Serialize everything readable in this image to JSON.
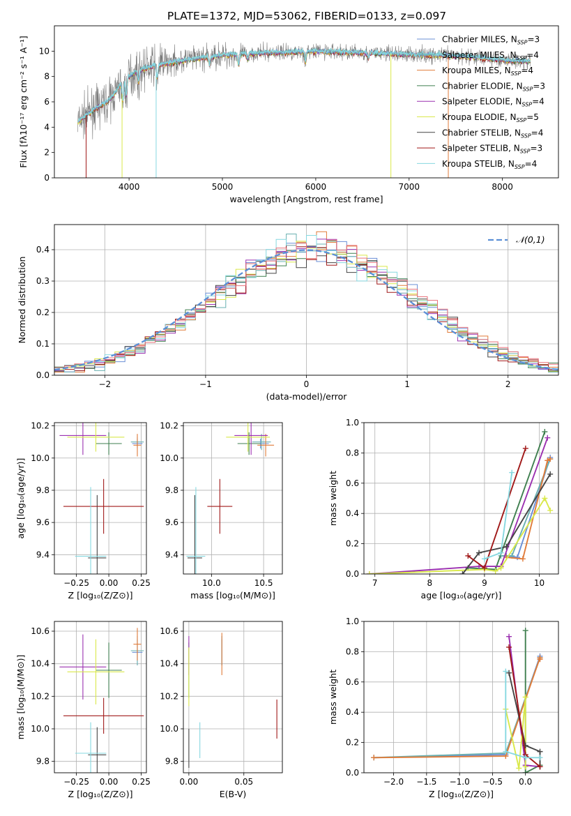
{
  "colors": {
    "chabrier_miles": "#6a8fd6",
    "salpeter_miles": "#6ab0b0",
    "kroupa_miles": "#e07b39",
    "chabrier_elodie": "#3f7f4f",
    "salpeter_elodie": "#9b30b0",
    "kroupa_elodie": "#d9e84a",
    "chabrier_stelib": "#444444",
    "salpeter_stelib": "#a01818",
    "kroupa_stelib": "#86d8e0",
    "normal_curve": "#5b8fd6",
    "grid": "#b0b0b0"
  },
  "chart_data": [
    {
      "id": "spectrum",
      "type": "line",
      "title": "PLATE=1372, MJD=53062, FIBERID=0133, z=0.097",
      "xlabel": "wavelength [Angstrom, rest frame]",
      "ylabel": "Flux [fλ10⁻¹⁷ erg cm⁻² s⁻¹ A⁻¹]",
      "xlim": [
        3200,
        8600
      ],
      "ylim": [
        0,
        12
      ],
      "xticks": [
        4000,
        5000,
        6000,
        7000,
        8000
      ],
      "yticks": [
        0,
        2,
        4,
        6,
        8,
        10
      ],
      "grid": false,
      "legend_position": "right",
      "series": [
        {
          "name": "Chabrier MILES, N_SSP=3"
        },
        {
          "name": "Salpeter MILES, N_SSP=4"
        },
        {
          "name": "Kroupa MILES, N_SSP=4"
        },
        {
          "name": "Chabrier ELODIE, N_SSP=3"
        },
        {
          "name": "Salpeter ELODIE, N_SSP=4"
        },
        {
          "name": "Kroupa ELODIE, N_SSP=5"
        },
        {
          "name": "Chabrier STELIB, N_SSP=4"
        },
        {
          "name": "Salpeter STELIB, N_SSP=3"
        },
        {
          "name": "Kroupa STELIB, N_SSP=4"
        }
      ],
      "continuum": {
        "x": [
          3450,
          3600,
          3800,
          3950,
          4100,
          4300,
          4600,
          4900,
          5200,
          5600,
          6000,
          6400,
          6800,
          7200,
          7600,
          8000,
          8300
        ],
        "y": [
          4.4,
          5.3,
          6.2,
          7.8,
          8.5,
          8.9,
          9.3,
          9.6,
          9.8,
          9.9,
          10.0,
          9.9,
          9.8,
          9.7,
          9.6,
          9.3,
          9.2
        ]
      }
    },
    {
      "id": "residuals",
      "type": "histogram",
      "xlabel": "(data-model)/error",
      "ylabel": "Normed distribution",
      "xlim": [
        -2.5,
        2.5
      ],
      "ylim": [
        0,
        0.48
      ],
      "xticks": [
        -2,
        -1,
        0,
        1,
        2
      ],
      "yticks": [
        0.0,
        0.1,
        0.2,
        0.3,
        0.4
      ],
      "grid": true,
      "legend": "𝒩(0,1)",
      "legend_position": "top-right",
      "bin_width": 0.1
    },
    {
      "id": "age_vs_Z",
      "type": "errorbar",
      "xlabel": "Z [log₁₀(Z/Z⊙)]",
      "ylabel": "age  [log₁₀(age/yr)]",
      "xlim": [
        -0.42,
        0.29
      ],
      "ylim": [
        9.28,
        10.22
      ],
      "xticks": [
        -0.25,
        0.0,
        0.25
      ],
      "yticks": [
        9.4,
        9.6,
        9.8,
        10.0,
        10.2
      ],
      "grid": true,
      "points": [
        {
          "model": "chabrier_miles",
          "x": 0.22,
          "xerr": 0.04,
          "y": 10.09,
          "yerr": 0.03
        },
        {
          "model": "salpeter_miles",
          "x": 0.22,
          "xerr": 0.05,
          "y": 10.1,
          "yerr": 0.03
        },
        {
          "model": "kroupa_miles",
          "x": 0.22,
          "xerr": 0.03,
          "y": 10.08,
          "yerr": 0.07
        },
        {
          "model": "chabrier_elodie",
          "x": 0.0,
          "xerr": 0.1,
          "y": 10.09,
          "yerr": 0.07
        },
        {
          "model": "salpeter_elodie",
          "x": -0.2,
          "xerr": 0.18,
          "y": 10.14,
          "yerr": 0.12
        },
        {
          "model": "kroupa_elodie",
          "x": -0.1,
          "xerr": 0.22,
          "y": 10.13,
          "yerr": 0.09
        },
        {
          "model": "chabrier_stelib",
          "x": -0.09,
          "xerr": 0.07,
          "y": 9.38,
          "yerr": 0.39
        },
        {
          "model": "salpeter_stelib",
          "x": -0.04,
          "xerr": 0.31,
          "y": 9.7,
          "yerr": 0.17
        },
        {
          "model": "kroupa_stelib",
          "x": -0.14,
          "xerr": 0.12,
          "y": 9.39,
          "yerr": 0.43
        }
      ]
    },
    {
      "id": "age_vs_mass",
      "type": "errorbar",
      "xlabel": "mass [log₁₀(M/M⊙)]",
      "xlim": [
        9.73,
        10.68
      ],
      "ylim": [
        9.28,
        10.22
      ],
      "xticks": [
        10.0,
        10.5
      ],
      "yticks": [
        9.4,
        9.6,
        9.8,
        10.0,
        10.2
      ],
      "grid": true,
      "points": [
        {
          "model": "chabrier_miles",
          "x": 10.47,
          "xerr": 0.08,
          "y": 10.09,
          "yerr": 0.03
        },
        {
          "model": "salpeter_miles",
          "x": 10.48,
          "xerr": 0.09,
          "y": 10.1,
          "yerr": 0.05
        },
        {
          "model": "kroupa_miles",
          "x": 10.52,
          "xerr": 0.08,
          "y": 10.08,
          "yerr": 0.07
        },
        {
          "model": "chabrier_elodie",
          "x": 10.36,
          "xerr": 0.11,
          "y": 10.09,
          "yerr": 0.07
        },
        {
          "model": "salpeter_elodie",
          "x": 10.38,
          "xerr": 0.16,
          "y": 10.14,
          "yerr": 0.12
        },
        {
          "model": "kroupa_elodie",
          "x": 10.35,
          "xerr": 0.21,
          "y": 10.13,
          "yerr": 0.09
        },
        {
          "model": "chabrier_stelib",
          "x": 9.84,
          "xerr": 0.07,
          "y": 9.38,
          "yerr": 0.39
        },
        {
          "model": "salpeter_stelib",
          "x": 10.08,
          "xerr": 0.12,
          "y": 9.7,
          "yerr": 0.17
        },
        {
          "model": "kroupa_stelib",
          "x": 9.85,
          "xerr": 0.09,
          "y": 9.39,
          "yerr": 0.43
        }
      ]
    },
    {
      "id": "mass_weight_vs_age",
      "type": "line",
      "xlabel": "age  [log₁₀(age/yr)]",
      "ylabel": "mass weight",
      "xlim": [
        6.8,
        10.35
      ],
      "ylim": [
        0,
        1
      ],
      "xticks": [
        7,
        8,
        9,
        10
      ],
      "yticks": [
        0.0,
        0.2,
        0.4,
        0.6,
        0.8,
        1.0
      ],
      "grid": true,
      "series": [
        {
          "model": "chabrier_miles",
          "x": [
            9.4,
            9.6,
            10.2
          ],
          "y": [
            0.12,
            0.11,
            0.77
          ]
        },
        {
          "model": "salpeter_miles",
          "x": [
            9.3,
            9.5,
            10.2
          ],
          "y": [
            0.12,
            0.12,
            0.76
          ]
        },
        {
          "model": "kroupa_miles",
          "x": [
            9.4,
            9.7,
            10.15,
            10.2
          ],
          "y": [
            0.11,
            0.1,
            0.75,
            0.76
          ]
        },
        {
          "model": "chabrier_elodie",
          "x": [
            8.7,
            9.2,
            10.1
          ],
          "y": [
            0.04,
            0.03,
            0.94
          ]
        },
        {
          "model": "salpeter_elodie",
          "x": [
            6.9,
            8.9,
            9.3,
            10.15
          ],
          "y": [
            0.0,
            0.05,
            0.05,
            0.9
          ]
        },
        {
          "model": "kroupa_elodie",
          "x": [
            6.9,
            9.0,
            9.2,
            9.3,
            10.1,
            10.2
          ],
          "y": [
            0.0,
            0.03,
            0.02,
            0.04,
            0.5,
            0.42
          ]
        },
        {
          "model": "chabrier_stelib",
          "x": [
            8.6,
            8.9,
            9.4,
            10.2
          ],
          "y": [
            0.0,
            0.14,
            0.18,
            0.66
          ]
        },
        {
          "model": "salpeter_stelib",
          "x": [
            8.7,
            9.0,
            9.75
          ],
          "y": [
            0.12,
            0.04,
            0.83
          ]
        },
        {
          "model": "kroupa_stelib",
          "x": [
            9.0,
            9.3,
            9.5
          ],
          "y": [
            0.1,
            0.14,
            0.67
          ]
        }
      ]
    },
    {
      "id": "mass_vs_Z",
      "type": "errorbar",
      "xlabel": "Z [log₁₀(Z/Z⊙)]",
      "ylabel": "mass [log₁₀(M/M⊙)]",
      "xlim": [
        -0.42,
        0.29
      ],
      "ylim": [
        9.73,
        10.66
      ],
      "xticks": [
        -0.25,
        0.0,
        0.25
      ],
      "yticks": [
        9.8,
        10.0,
        10.2,
        10.4,
        10.6
      ],
      "grid": true,
      "points": [
        {
          "model": "chabrier_miles",
          "x": 0.22,
          "xerr": 0.04,
          "y": 10.47,
          "yerr": 0.08
        },
        {
          "model": "salpeter_miles",
          "x": 0.22,
          "xerr": 0.05,
          "y": 10.48,
          "yerr": 0.09
        },
        {
          "model": "kroupa_miles",
          "x": 0.22,
          "xerr": 0.03,
          "y": 10.52,
          "yerr": 0.1
        },
        {
          "model": "chabrier_elodie",
          "x": 0.0,
          "xerr": 0.1,
          "y": 10.36,
          "yerr": 0.17
        },
        {
          "model": "salpeter_elodie",
          "x": -0.2,
          "xerr": 0.18,
          "y": 10.38,
          "yerr": 0.2
        },
        {
          "model": "kroupa_elodie",
          "x": -0.1,
          "xerr": 0.22,
          "y": 10.35,
          "yerr": 0.2
        },
        {
          "model": "chabrier_stelib",
          "x": -0.09,
          "xerr": 0.07,
          "y": 9.84,
          "yerr": 0.17
        },
        {
          "model": "salpeter_stelib",
          "x": -0.04,
          "xerr": 0.31,
          "y": 10.08,
          "yerr": 0.11
        },
        {
          "model": "kroupa_stelib",
          "x": -0.14,
          "xerr": 0.12,
          "y": 9.85,
          "yerr": 0.19
        }
      ]
    },
    {
      "id": "mass_vs_ebv",
      "type": "errorbar",
      "xlabel": "E(B-V)",
      "xlim": [
        -0.005,
        0.085
      ],
      "ylim": [
        9.73,
        10.66
      ],
      "xticks": [
        0.0,
        0.05
      ],
      "yticks": [
        9.8,
        10.0,
        10.2,
        10.4,
        10.6
      ],
      "grid": true,
      "points": [
        {
          "model": "chabrier_miles",
          "x": 0.03,
          "xerr": 0.0,
          "y": 10.47,
          "yerr": 0.08
        },
        {
          "model": "salpeter_miles",
          "x": 0.03,
          "xerr": 0.0,
          "y": 10.48,
          "yerr": 0.09
        },
        {
          "model": "kroupa_miles",
          "x": 0.03,
          "xerr": 0.0,
          "y": 10.46,
          "yerr": 0.13
        },
        {
          "model": "chabrier_elodie",
          "x": 0.0,
          "xerr": 0.0,
          "y": 10.36,
          "yerr": 0.17
        },
        {
          "model": "salpeter_elodie",
          "x": 0.0,
          "xerr": 0.0,
          "y": 10.45,
          "yerr": 0.12
        },
        {
          "model": "kroupa_elodie",
          "x": 0.0,
          "xerr": 0.0,
          "y": 10.32,
          "yerr": 0.18
        },
        {
          "model": "chabrier_stelib",
          "x": 0.0,
          "xerr": 0.0,
          "y": 9.88,
          "yerr": 0.12
        },
        {
          "model": "salpeter_stelib",
          "x": 0.08,
          "xerr": 0.0,
          "y": 10.06,
          "yerr": 0.12
        },
        {
          "model": "kroupa_stelib",
          "x": 0.01,
          "xerr": 0.0,
          "y": 9.93,
          "yerr": 0.11
        }
      ]
    },
    {
      "id": "mass_weight_vs_Z",
      "type": "line",
      "xlabel": "Z [log₁₀(Z/Z⊙)]",
      "ylabel": "mass weight",
      "xlim": [
        -2.45,
        0.5
      ],
      "ylim": [
        0,
        1
      ],
      "xticks": [
        -2.0,
        -1.5,
        -1.0,
        -0.5,
        0.0
      ],
      "yticks": [
        0.0,
        0.2,
        0.4,
        0.6,
        0.8,
        1.0
      ],
      "grid": true,
      "series": [
        {
          "model": "chabrier_miles",
          "x": [
            -2.3,
            -0.3,
            0.22
          ],
          "y": [
            0.1,
            0.12,
            0.77
          ]
        },
        {
          "model": "salpeter_miles",
          "x": [
            -2.3,
            -0.3,
            0.22
          ],
          "y": [
            0.1,
            0.13,
            0.76
          ]
        },
        {
          "model": "kroupa_miles",
          "x": [
            -2.3,
            -0.3,
            0.22,
            0.22
          ],
          "y": [
            0.1,
            0.11,
            0.76,
            0.75
          ]
        },
        {
          "model": "chabrier_elodie",
          "x": [
            0.0,
            0.0,
            0.22
          ],
          "y": [
            0.94,
            0.0,
            0.05
          ]
        },
        {
          "model": "salpeter_elodie",
          "x": [
            -0.25,
            0.0,
            0.22
          ],
          "y": [
            0.9,
            0.05,
            0.04
          ]
        },
        {
          "model": "kroupa_elodie",
          "x": [
            -0.3,
            -0.1,
            0.0,
            0.0
          ],
          "y": [
            0.42,
            0.03,
            0.5,
            0.04
          ]
        },
        {
          "model": "chabrier_stelib",
          "x": [
            -0.25,
            0.0,
            0.22,
            0.22
          ],
          "y": [
            0.66,
            0.18,
            0.14,
            0.04
          ]
        },
        {
          "model": "salpeter_stelib",
          "x": [
            -0.25,
            0.0,
            0.22
          ],
          "y": [
            0.83,
            0.12,
            0.04
          ]
        },
        {
          "model": "kroupa_stelib",
          "x": [
            -0.3,
            -0.3,
            0.0,
            0.22
          ],
          "y": [
            0.67,
            0.14,
            0.1,
            0.1
          ]
        }
      ]
    }
  ]
}
